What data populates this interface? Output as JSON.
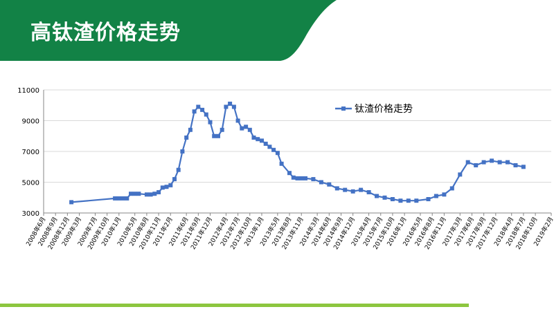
{
  "slide": {
    "title": "高钛渣价格走势",
    "colors": {
      "banner": "#128246",
      "accent": "#8dc63f",
      "line": "#4472c4"
    }
  },
  "chart_data": {
    "type": "line",
    "title": "",
    "xlabel": "",
    "ylabel": "",
    "ylim": [
      3000,
      11000
    ],
    "yticks": [
      3000,
      5000,
      7000,
      9000,
      11000
    ],
    "xticks": [
      "2008年6月",
      "2008年9月",
      "2008年12月",
      "2009年3月",
      "2009年7月",
      "2009年10月",
      "2010年1月",
      "2010年5月",
      "2010年8月",
      "2010年11月",
      "2011年2月",
      "2011年6月",
      "2011年9月",
      "2011年12月",
      "2012年4月",
      "2012年7月",
      "2012年10月",
      "2013年1月",
      "2013年5月",
      "2013年8月",
      "2013年11月",
      "2014年3月",
      "2014年6月",
      "2014年9月",
      "2014年12月",
      "2015年4月",
      "2015年7月",
      "2015年10月",
      "2016年1月",
      "2016年5月",
      "2016年8月",
      "2016年11月",
      "2017年3月",
      "2017年6月",
      "2017年9月",
      "2017年12月",
      "2018年4月",
      "2018年7月",
      "2018年10月",
      "2019年2月"
    ],
    "grid": "horizontal",
    "legend_position": "top-right",
    "series": [
      {
        "name": "钛渣价格走势",
        "color": "#4472c4",
        "points": [
          [
            "2009-01",
            3700
          ],
          [
            "2009-12",
            3950
          ],
          [
            "2010-01",
            3950
          ],
          [
            "2010-02",
            3950
          ],
          [
            "2010-03",
            3950
          ],
          [
            "2010-04",
            4250
          ],
          [
            "2010-05",
            4250
          ],
          [
            "2010-06",
            4250
          ],
          [
            "2010-08",
            4200
          ],
          [
            "2010-09",
            4200
          ],
          [
            "2010-10",
            4250
          ],
          [
            "2010-11",
            4350
          ],
          [
            "2010-12",
            4650
          ],
          [
            "2011-01",
            4700
          ],
          [
            "2011-02",
            4800
          ],
          [
            "2011-03",
            5200
          ],
          [
            "2011-04",
            5800
          ],
          [
            "2011-05",
            7000
          ],
          [
            "2011-06",
            7900
          ],
          [
            "2011-07",
            8400
          ],
          [
            "2011-08",
            9600
          ],
          [
            "2011-09",
            9900
          ],
          [
            "2011-10",
            9700
          ],
          [
            "2011-11",
            9400
          ],
          [
            "2011-12",
            8900
          ],
          [
            "2012-01",
            8000
          ],
          [
            "2012-02",
            8000
          ],
          [
            "2012-03",
            8400
          ],
          [
            "2012-04",
            9900
          ],
          [
            "2012-05",
            10100
          ],
          [
            "2012-06",
            9900
          ],
          [
            "2012-07",
            9000
          ],
          [
            "2012-08",
            8500
          ],
          [
            "2012-09",
            8600
          ],
          [
            "2012-10",
            8400
          ],
          [
            "2012-11",
            7900
          ],
          [
            "2012-12",
            7800
          ],
          [
            "2013-01",
            7700
          ],
          [
            "2013-02",
            7500
          ],
          [
            "2013-03",
            7300
          ],
          [
            "2013-04",
            7100
          ],
          [
            "2013-05",
            6900
          ],
          [
            "2013-06",
            6200
          ],
          [
            "2013-08",
            5600
          ],
          [
            "2013-09",
            5300
          ],
          [
            "2013-10",
            5250
          ],
          [
            "2013-11",
            5250
          ],
          [
            "2013-12",
            5250
          ],
          [
            "2014-02",
            5200
          ],
          [
            "2014-04",
            5000
          ],
          [
            "2014-06",
            4850
          ],
          [
            "2014-08",
            4600
          ],
          [
            "2014-10",
            4500
          ],
          [
            "2014-12",
            4400
          ],
          [
            "2015-02",
            4500
          ],
          [
            "2015-04",
            4350
          ],
          [
            "2015-06",
            4100
          ],
          [
            "2015-08",
            4000
          ],
          [
            "2015-10",
            3900
          ],
          [
            "2015-12",
            3800
          ],
          [
            "2016-02",
            3800
          ],
          [
            "2016-04",
            3800
          ],
          [
            "2016-07",
            3900
          ],
          [
            "2016-09",
            4100
          ],
          [
            "2016-11",
            4200
          ],
          [
            "2017-01",
            4600
          ],
          [
            "2017-03",
            5500
          ],
          [
            "2017-05",
            6300
          ],
          [
            "2017-07",
            6100
          ],
          [
            "2017-09",
            6300
          ],
          [
            "2017-11",
            6400
          ],
          [
            "2018-01",
            6300
          ],
          [
            "2018-03",
            6300
          ],
          [
            "2018-05",
            6100
          ],
          [
            "2018-07",
            6000
          ]
        ]
      }
    ]
  }
}
